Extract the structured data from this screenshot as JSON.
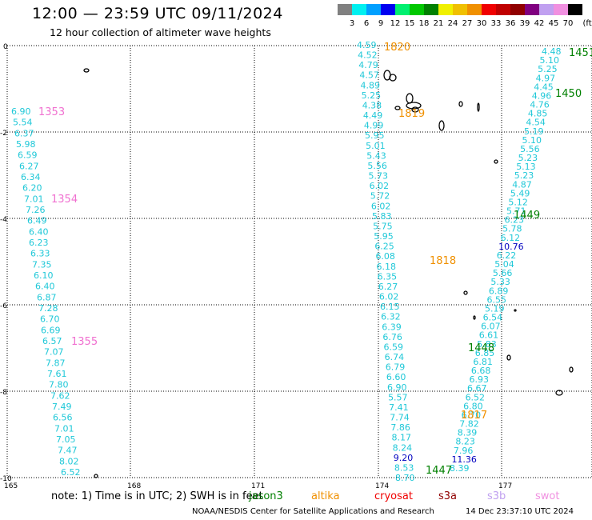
{
  "header": {
    "title": "12:00 — 23:59 UTC 09/11/2024",
    "subtitle": "12 hour collection of altimeter wave heights"
  },
  "legend": {
    "unit": "(ft)",
    "bins": [
      {
        "label": "3",
        "color": "#808080"
      },
      {
        "label": "6",
        "color": "#00f0f0"
      },
      {
        "label": "9",
        "color": "#00a0ff"
      },
      {
        "label": "12",
        "color": "#0000f0"
      },
      {
        "label": "15",
        "color": "#00f070"
      },
      {
        "label": "18",
        "color": "#00c800"
      },
      {
        "label": "21",
        "color": "#008000"
      },
      {
        "label": "24",
        "color": "#f0f000"
      },
      {
        "label": "27",
        "color": "#f0c000"
      },
      {
        "label": "30",
        "color": "#f09000"
      },
      {
        "label": "33",
        "color": "#f00000"
      },
      {
        "label": "36",
        "color": "#c00000"
      },
      {
        "label": "39",
        "color": "#900000"
      },
      {
        "label": "42",
        "color": "#800080"
      },
      {
        "label": "45",
        "color": "#c0a0f0"
      },
      {
        "label": "70",
        "color": "#f090e0"
      },
      {
        "label": "",
        "color": "#000000"
      }
    ]
  },
  "axes": {
    "lon_ticks": [
      "165",
      "168",
      "171",
      "174",
      "177"
    ],
    "lat_ticks": [
      "0",
      "-2",
      "-4",
      "-6",
      "-8",
      "-10"
    ]
  },
  "map": {
    "tracks": [
      {
        "color": "#20c8d8",
        "values": [
          "6.90",
          "5.54",
          "6.37",
          "5.98",
          "6.59",
          "6.27",
          "6.34",
          "6.20",
          "7.01",
          "7.26",
          "6.49",
          "6.40",
          "6.23",
          "6.33",
          "7.35",
          "6.10",
          "6.40",
          "6.87",
          "7.28",
          "6.70",
          "6.69",
          "6.57",
          "7.07",
          "7.87",
          "7.61",
          "7.80",
          "7.62",
          "7.49",
          "6.56",
          "7.01",
          "7.05",
          "7.47",
          "8.02",
          "6.52"
        ],
        "color2": "#20c8d8"
      },
      {
        "color": "#20c8d8",
        "values": [
          "4.59",
          "4.52",
          "4.79",
          "4.57",
          "4.89",
          "5.25",
          "4.38",
          "4.49",
          "4.99",
          "5.95",
          "5.01",
          "5.43",
          "5.56",
          "5.73",
          "6.02",
          "5.72",
          "6.02",
          "5.83",
          "5.75",
          "5.95",
          "6.25",
          "6.08",
          "6.18",
          "6.35",
          "6.27",
          "6.02",
          "6.15",
          "6.32",
          "6.39",
          "6.76",
          "6.59",
          "6.74",
          "6.79",
          "6.60",
          "6.90",
          "5.57",
          "7.41",
          "7.74",
          "7.86",
          "8.17",
          "8.24",
          "9.20",
          "8.53",
          "8.70"
        ]
      },
      {
        "color": "#20c8d8",
        "values": [
          "4.48",
          "5.10",
          "5.25",
          "4.97",
          "4.45",
          "4.96",
          "4.76",
          "4.85",
          "4.54",
          "5.19",
          "5.10",
          "5.56",
          "5.23",
          "5.13",
          "5.23",
          "4.87",
          "5.49",
          "5.12",
          "5.71",
          "6.23",
          "5.78",
          "6.12",
          "10.76",
          "6.22",
          "5.04",
          "5.66",
          "5.33",
          "6.89",
          "6.55",
          "5.19",
          "6.54",
          "6.07",
          "6.61",
          "5.83",
          "6.85",
          "6.81",
          "6.68",
          "6.93",
          "6.67",
          "6.52",
          "6.80",
          "6.70",
          "7.82",
          "8.39",
          "8.23",
          "7.96",
          "11.36",
          "8.39"
        ]
      }
    ],
    "labels": {
      "pass_1353": "1353",
      "pass_1354": "1354",
      "pass_1355": "1355",
      "pass_1820": "1820",
      "pass_1819": "1819",
      "pass_1818": "1818",
      "pass_1817": "1817",
      "pass_1451": "1451",
      "pass_1450": "1450",
      "pass_1449": "1449",
      "pass_1448": "1448",
      "pass_1447": "1447"
    },
    "colors": {
      "pink": "#f070d0",
      "orange": "#f09000",
      "green": "#008000",
      "blue": "#0000c0"
    }
  },
  "footer": {
    "note": "note:  1) Time is in UTC; 2) SWH is in feet",
    "satellites": [
      {
        "name": "jason3",
        "color": "#008000"
      },
      {
        "name": "altika",
        "color": "#f09000"
      },
      {
        "name": "cryosat",
        "color": "#f00000"
      },
      {
        "name": "s3a",
        "color": "#900000"
      },
      {
        "name": "s3b",
        "color": "#c0a0f0"
      },
      {
        "name": "swot",
        "color": "#f090e0"
      }
    ],
    "credit": "NOAA/NESDIS Center for Satellite Applications and Research",
    "timestamp": "14 Dec 23:37:10 UTC 2024"
  }
}
